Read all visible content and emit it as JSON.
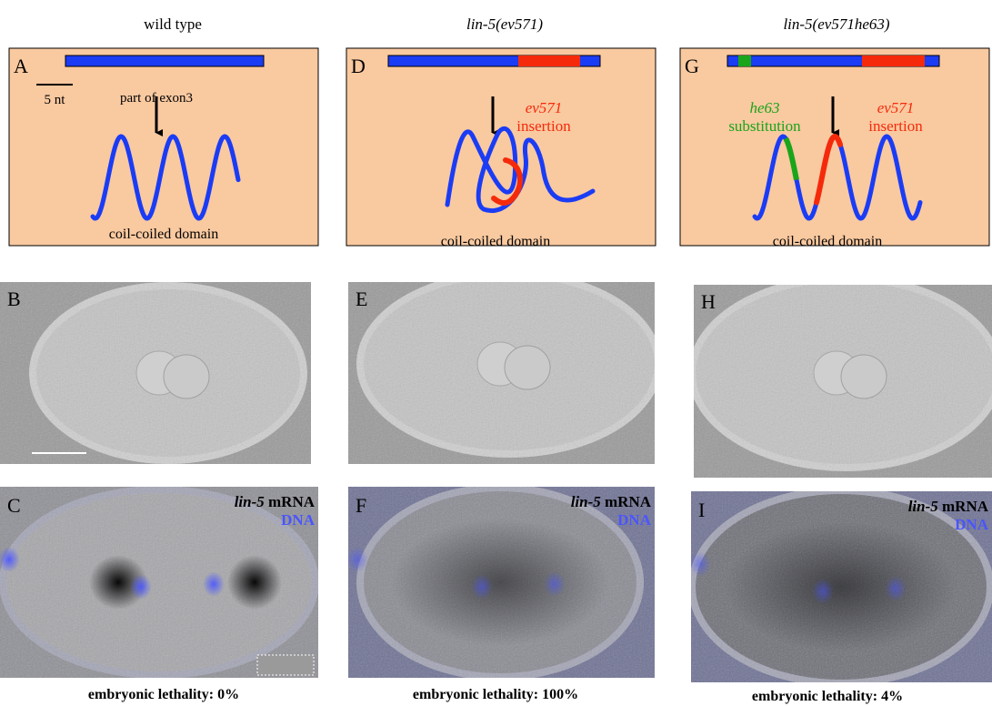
{
  "columns": [
    {
      "header": "wild type",
      "diagram": {
        "label": "A",
        "scale_bar": "5 nt",
        "annotation": "part of exon3",
        "domain_label": "coil-coiled domain"
      },
      "dic_panel": {
        "label": "B"
      },
      "fish_panel": {
        "label": "C",
        "probe_gene": "lin-5",
        "probe_suffix": "mRNA",
        "stain": "DNA"
      },
      "lethality": "embryonic lethality: 0%"
    },
    {
      "header": "lin-5(ev571)",
      "diagram": {
        "label": "D",
        "mutations": [
          {
            "name": "ev571",
            "kind": "insertion"
          }
        ],
        "domain_label": "coil-coiled domain"
      },
      "dic_panel": {
        "label": "E"
      },
      "fish_panel": {
        "label": "F",
        "probe_gene": "lin-5",
        "probe_suffix": "mRNA",
        "stain": "DNA"
      },
      "lethality": "embryonic lethality: 100%"
    },
    {
      "header": "lin-5(ev571he63)",
      "diagram": {
        "label": "G",
        "mutations": [
          {
            "name": "he63",
            "kind": "substitution"
          },
          {
            "name": "ev571",
            "kind": "insertion"
          }
        ],
        "domain_label": "coil-coiled domain"
      },
      "dic_panel": {
        "label": "H"
      },
      "fish_panel": {
        "label": "I",
        "probe_gene": "lin-5",
        "probe_suffix": "mRNA",
        "stain": "DNA"
      },
      "lethality": "embryonic lethality: 4%"
    }
  ]
}
